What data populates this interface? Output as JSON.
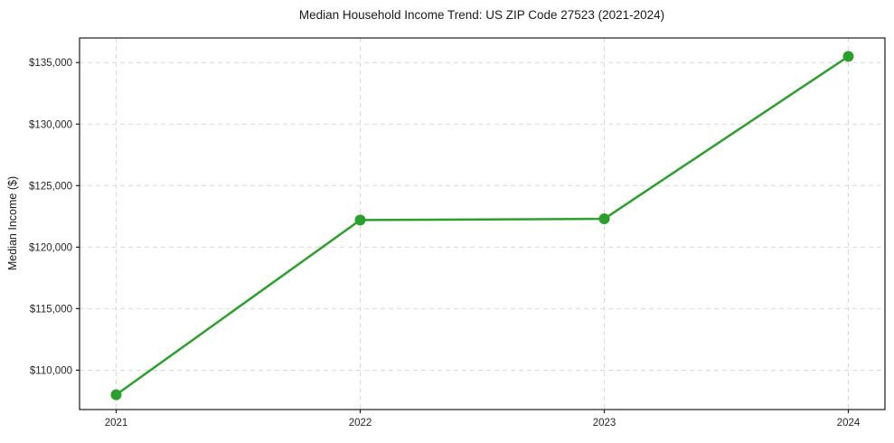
{
  "chart_data": {
    "type": "line",
    "title": "Median Household Income Trend: US ZIP Code 27523 (2021-2024)",
    "xlabel": "",
    "ylabel": "Median Income ($)",
    "series": [
      {
        "name": "Median Household Income",
        "x": [
          2021,
          2022,
          2023,
          2024
        ],
        "values": [
          108000,
          122200,
          122300,
          135500
        ]
      }
    ],
    "xticks": {
      "values": [
        2021,
        2022,
        2023,
        2024
      ],
      "labels": [
        "2021",
        "2022",
        "2023",
        "2024"
      ]
    },
    "yticks": {
      "values": [
        110000,
        115000,
        120000,
        125000,
        130000,
        135000
      ],
      "labels": [
        "$110,000",
        "$115,000",
        "$120,000",
        "$125,000",
        "$130,000",
        "$135,000"
      ]
    },
    "xlim": [
      2020.85,
      2024.15
    ],
    "ylim": [
      106800,
      137000
    ],
    "grid": true,
    "grid_style": "dashed",
    "legend_position": "none",
    "colors": {
      "line": "#2ca02c",
      "marker": "#2ca02c",
      "grid": "#d9d9d9",
      "spine": "#1a1a1a",
      "background": "#ffffff"
    },
    "marker_shape": "circle"
  }
}
